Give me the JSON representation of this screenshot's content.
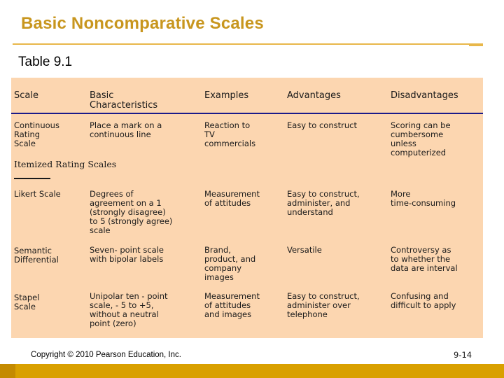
{
  "slide": {
    "title": "Basic Noncomparative Scales",
    "subtitle": "Table 9.1",
    "copyright": "Copyright © 2010 Pearson Education, Inc.",
    "page_number": "9-14"
  },
  "table": {
    "headers": [
      "Scale",
      "Basic\nCharacteristics",
      "Examples",
      "Advantages",
      "Disadvantages"
    ],
    "rows": [
      [
        "Continuous\nRating\nScale",
        "Place a mark on a\ncontinuous line",
        "Reaction to\nTV\ncommercials",
        "Easy to construct",
        "Scoring can be\ncumbersome\nunless\ncomputerized"
      ],
      [
        "Likert Scale",
        "Degrees of\nagreement on a 1\n(strongly disagree)\nto 5 (strongly agree)\nscale",
        "Measurement\nof attitudes",
        "Easy to construct,\nadminister, and\nunderstand",
        "More\ntime-consuming"
      ],
      [
        "Semantic\nDifferential",
        " Seven- point scale\nwith bipolar labels",
        "Brand,\nproduct, and\ncompany\nimages",
        "Versatile",
        "Controversy as\nto whether the\ndata are interval"
      ],
      [
        "Stapel\nScale",
        "Unipolar ten - point\nscale, - 5 to +5,\nwithout a neutral\npoint (zero)",
        "Measurement\nof attitudes\nand images",
        "Easy to construct,\nadminister over\ntelephone",
        "Confusing and\ndifficult to apply"
      ]
    ],
    "section_label": "Itemized Rating Scales"
  },
  "colors": {
    "title": "#c8961e",
    "table_background": "#fcd6b0",
    "rule": "#1a1a8a",
    "footer_bar": "#d9a000"
  }
}
